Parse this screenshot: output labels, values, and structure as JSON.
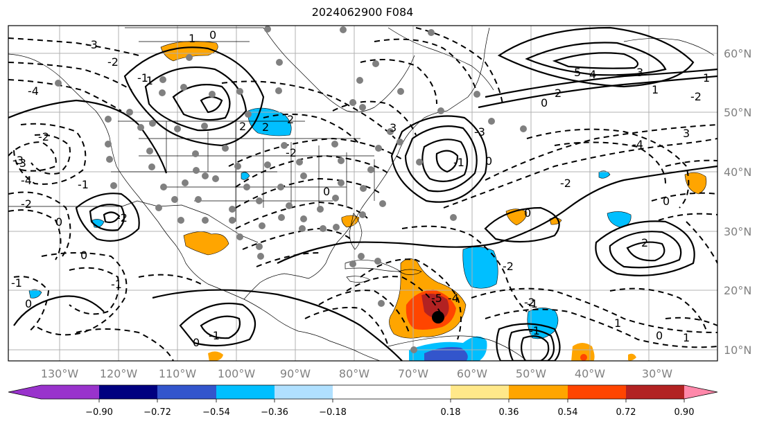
{
  "title": "2024062900 F084",
  "lon_labels": [
    "130°W",
    "120°W",
    "110°W",
    "100°W",
    "90°W",
    "80°W",
    "70°W",
    "60°W",
    "50°W",
    "40°W",
    "30°W"
  ],
  "lat_labels": [
    "60°N",
    "50°N",
    "40°N",
    "30°N",
    "20°N",
    "10°N"
  ],
  "colorbar": {
    "ticks": [
      "−0.90",
      "−0.72",
      "−0.54",
      "−0.36",
      "−0.18",
      "0.18",
      "0.36",
      "0.54",
      "0.72",
      "0.90"
    ],
    "colors": [
      "#9933cc",
      "#000080",
      "#3355cc",
      "#00bfff",
      "#b0e0ff",
      "#ffffff",
      "#ffe88a",
      "#ffa500",
      "#ff4500",
      "#b22222",
      "#ff88aa"
    ]
  },
  "contour_labels": {
    "l1": "-3",
    "l2": "-2",
    "l3": "-1",
    "l4": "0",
    "l5": "2",
    "l6": "-4",
    "l7": "3",
    "l8": "-3",
    "l9": "-2",
    "l10": "-2",
    "l11": "-1",
    "l12": "-4",
    "l13": "5",
    "l14": "4",
    "l15": "3",
    "l16": "1",
    "l17": "2",
    "l18": "-2",
    "l19": "3",
    "l20": "-4",
    "l21": "-3",
    "l22": "-1",
    "l23": "0",
    "l24": "-2",
    "l25": "0",
    "l26": "-5",
    "l27": "-4",
    "l28": "-3",
    "l29": "-2",
    "l30": "0",
    "l31": "2",
    "l32": "-2",
    "l33": "0",
    "l34": "-1",
    "l35": "1",
    "l36": "0",
    "l37": "1",
    "l38": "0",
    "l39": "-1",
    "l40": "0",
    "l41": "-1",
    "l42": "0",
    "l43": "2",
    "l44": "2",
    "l45": "-2",
    "l46": "1",
    "l47": "0",
    "l48": "-1",
    "l49": "0",
    "l50": "-1",
    "l51": "1",
    "l52": "-1",
    "l53": "-2"
  }
}
